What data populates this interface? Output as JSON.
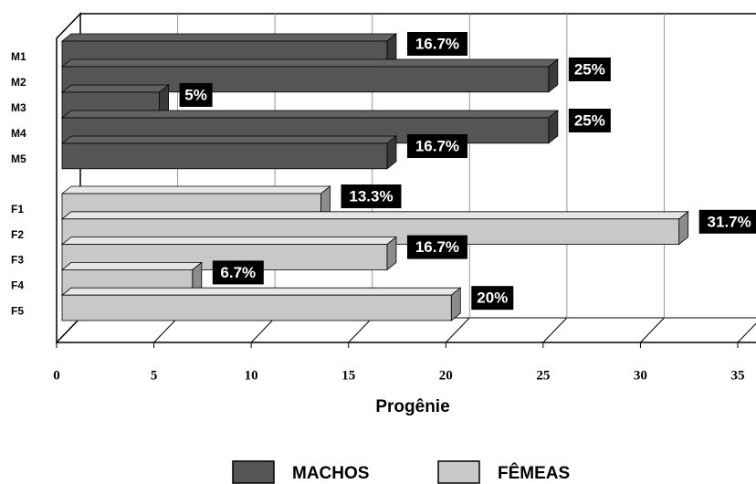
{
  "chart_data": {
    "type": "bar3d_horizontal",
    "categories": [
      "M1",
      "M2",
      "M3",
      "M4",
      "M5",
      "F1",
      "F2",
      "F3",
      "F4",
      "F5"
    ],
    "series": [
      {
        "name": "MACHOS",
        "color": "#555555",
        "values": [
          16.7,
          25,
          5,
          25,
          16.7,
          null,
          null,
          null,
          null,
          null
        ],
        "value_labels": [
          "16.7%",
          "25%",
          "5%",
          "25%",
          "16.7%",
          null,
          null,
          null,
          null,
          null
        ]
      },
      {
        "name": "FÊMEAS",
        "color": "#c8c8c8",
        "values": [
          null,
          null,
          null,
          null,
          null,
          13.3,
          31.7,
          16.7,
          6.7,
          20
        ],
        "value_labels": [
          null,
          null,
          null,
          null,
          null,
          "13.3%",
          "31.7%",
          "16.7%",
          "6.7%",
          "20%"
        ]
      }
    ],
    "xlabel": "Progênie",
    "xlim": [
      0,
      35
    ],
    "xticks": [
      0,
      5,
      10,
      15,
      20,
      25,
      30,
      35
    ],
    "grid": true
  }
}
